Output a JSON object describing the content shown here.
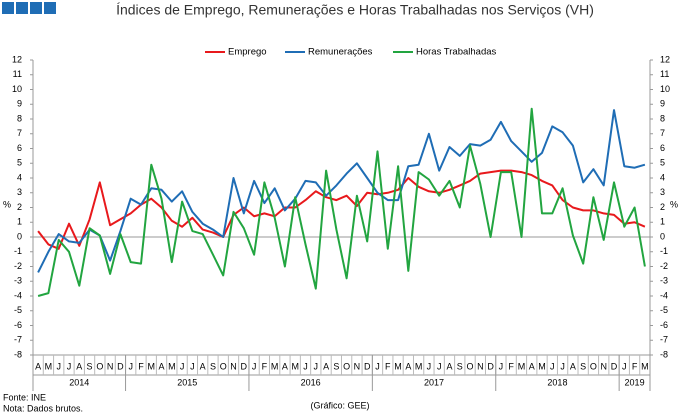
{
  "chart_data": {
    "type": "line",
    "title": "Índices de Emprego, Remunerações e Horas Trabalhadas nos Serviços (VH)",
    "y_label": "%",
    "categories": [
      "A",
      "M",
      "J",
      "J",
      "A",
      "S",
      "O",
      "N",
      "D",
      "J",
      "F",
      "M",
      "A",
      "M",
      "J",
      "J",
      "A",
      "S",
      "O",
      "N",
      "D",
      "J",
      "F",
      "M",
      "A",
      "M",
      "J",
      "J",
      "A",
      "S",
      "O",
      "N",
      "D",
      "J",
      "F",
      "M",
      "A",
      "M",
      "J",
      "J",
      "A",
      "S",
      "O",
      "N",
      "D",
      "J",
      "F",
      "M",
      "A",
      "M",
      "J",
      "J",
      "A",
      "S",
      "O",
      "N",
      "D",
      "J",
      "F",
      "M"
    ],
    "years": [
      {
        "label": "2014",
        "months": 9
      },
      {
        "label": "2015",
        "months": 12
      },
      {
        "label": "2016",
        "months": 12
      },
      {
        "label": "2017",
        "months": 12
      },
      {
        "label": "2018",
        "months": 12
      },
      {
        "label": "2019",
        "months": 3
      }
    ],
    "series": [
      {
        "name": "Emprego",
        "color": "#e8191c",
        "values": [
          0.4,
          -0.5,
          -0.8,
          0.9,
          -0.6,
          1.2,
          3.7,
          0.8,
          1.2,
          1.6,
          2.2,
          2.6,
          2.0,
          1.1,
          0.7,
          1.3,
          0.5,
          0.3,
          0.0,
          1.5,
          2.0,
          1.4,
          1.6,
          1.4,
          2.0,
          2.0,
          2.5,
          3.1,
          2.7,
          2.5,
          2.8,
          2.1,
          3.0,
          2.9,
          3.0,
          3.2,
          4.0,
          3.4,
          3.1,
          3.0,
          3.2,
          3.5,
          3.8,
          4.3,
          4.4,
          4.5,
          4.5,
          4.4,
          4.2,
          3.8,
          3.5,
          2.5,
          2.0,
          1.8,
          1.8,
          1.6,
          1.5,
          0.9,
          1.0,
          0.7
        ]
      },
      {
        "name": "Remunerações",
        "color": "#1f6db5",
        "values": [
          -2.4,
          -1.0,
          0.2,
          -0.3,
          -0.4,
          0.5,
          0.1,
          -1.6,
          0.4,
          2.6,
          2.2,
          3.3,
          3.2,
          2.4,
          3.1,
          1.7,
          0.9,
          0.5,
          0.0,
          4.0,
          1.6,
          3.8,
          2.3,
          3.3,
          1.8,
          2.6,
          3.8,
          3.7,
          2.8,
          3.5,
          4.3,
          5.0,
          4.0,
          3.0,
          2.5,
          2.5,
          4.8,
          4.9,
          7.0,
          4.5,
          6.1,
          5.5,
          6.3,
          6.2,
          6.6,
          7.8,
          6.5,
          5.8,
          5.1,
          5.7,
          7.5,
          7.1,
          6.2,
          3.7,
          4.6,
          3.5,
          8.6,
          4.8,
          4.7,
          4.9
        ]
      },
      {
        "name": "Horas Trabalhadas",
        "color": "#22a540",
        "values": [
          -4.0,
          -3.8,
          -0.2,
          -1.0,
          -3.3,
          0.6,
          0.1,
          -2.5,
          0.2,
          -1.7,
          -1.8,
          4.9,
          2.6,
          -1.7,
          2.4,
          0.4,
          0.2,
          -1.2,
          -2.6,
          1.7,
          0.6,
          -1.2,
          3.7,
          1.3,
          -2.0,
          2.7,
          -0.5,
          -3.5,
          4.5,
          0.5,
          -2.8,
          2.8,
          -0.3,
          5.8,
          -0.8,
          4.8,
          -2.3,
          4.4,
          3.9,
          2.8,
          3.8,
          2.0,
          6.2,
          3.6,
          0.0,
          4.4,
          4.4,
          0.0,
          8.7,
          1.6,
          1.6,
          3.3,
          0.1,
          -1.8,
          2.7,
          -0.2,
          3.7,
          0.7,
          2.0,
          -2.0
        ]
      }
    ],
    "ylim": [
      -8,
      12
    ],
    "yticks": [
      -8,
      -7,
      -6,
      -5,
      -4,
      -3,
      -2,
      -1,
      0,
      1,
      2,
      3,
      4,
      5,
      6,
      7,
      8,
      9,
      10,
      11,
      12
    ],
    "source": "Fonte: INE",
    "note": "Nota: Dados brutos.",
    "credit": "(Gráfico: GEE)"
  }
}
